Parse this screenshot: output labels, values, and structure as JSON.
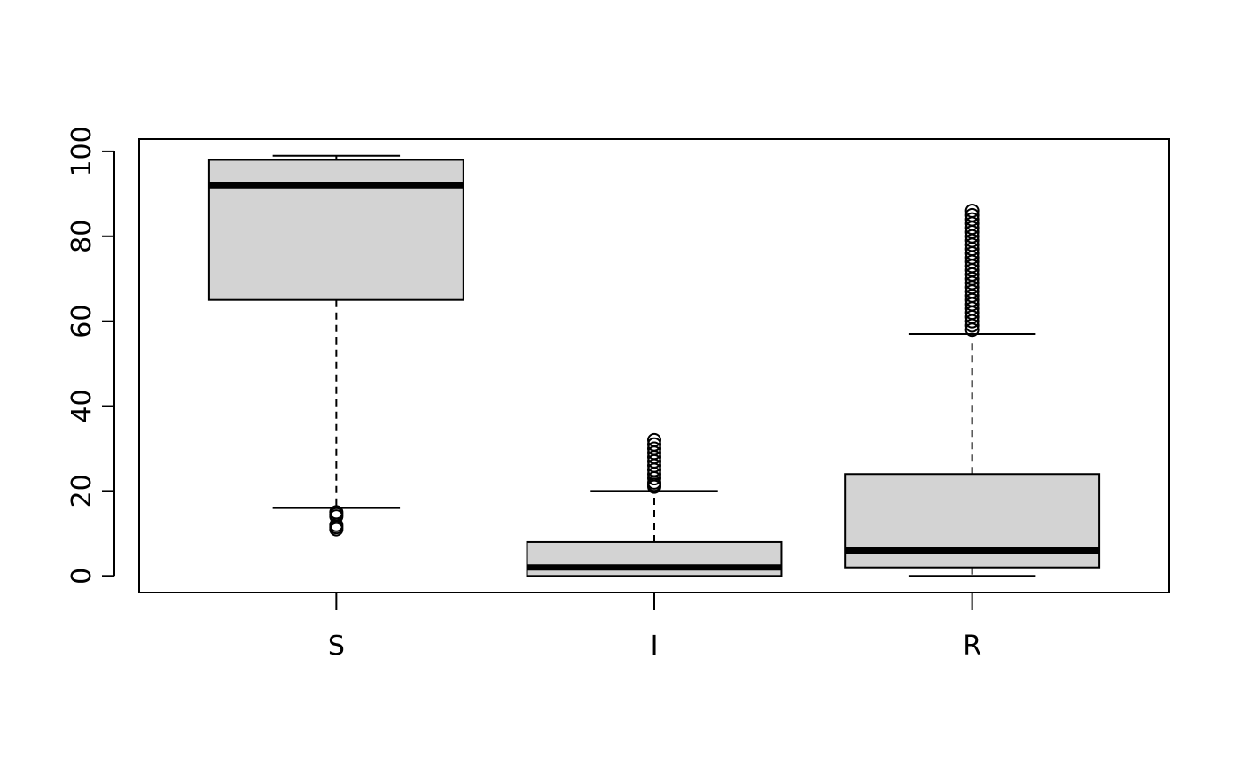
{
  "chart_data": {
    "type": "boxplot",
    "title": "",
    "xlabel": "",
    "ylabel": "",
    "categories": [
      "S",
      "I",
      "R"
    ],
    "ylim": [
      -3.9,
      102.9
    ],
    "yticks": [
      0,
      20,
      40,
      60,
      80,
      100
    ],
    "box_fill": "#d3d3d3",
    "boxes": [
      {
        "name": "S",
        "whisker_low": 16,
        "q1": 65,
        "median": 92,
        "q3": 98,
        "whisker_high": 99,
        "outliers": [
          11,
          11.5,
          12,
          14,
          14.5,
          15
        ]
      },
      {
        "name": "I",
        "whisker_low": 0,
        "q1": 0,
        "median": 2,
        "q3": 8,
        "whisker_high": 20,
        "outliers": [
          21,
          21.5,
          22,
          23,
          24,
          25,
          26,
          27,
          28,
          29,
          30,
          31,
          32
        ]
      },
      {
        "name": "R",
        "whisker_low": 0,
        "q1": 2,
        "median": 6,
        "q3": 24,
        "whisker_high": 57,
        "outliers": [
          58,
          59,
          60,
          61,
          62,
          63,
          64,
          65,
          66,
          67,
          68,
          69,
          70,
          71,
          72,
          73,
          74,
          75,
          76,
          77,
          78,
          79,
          80,
          81,
          82,
          83,
          84,
          85,
          86
        ]
      }
    ]
  }
}
